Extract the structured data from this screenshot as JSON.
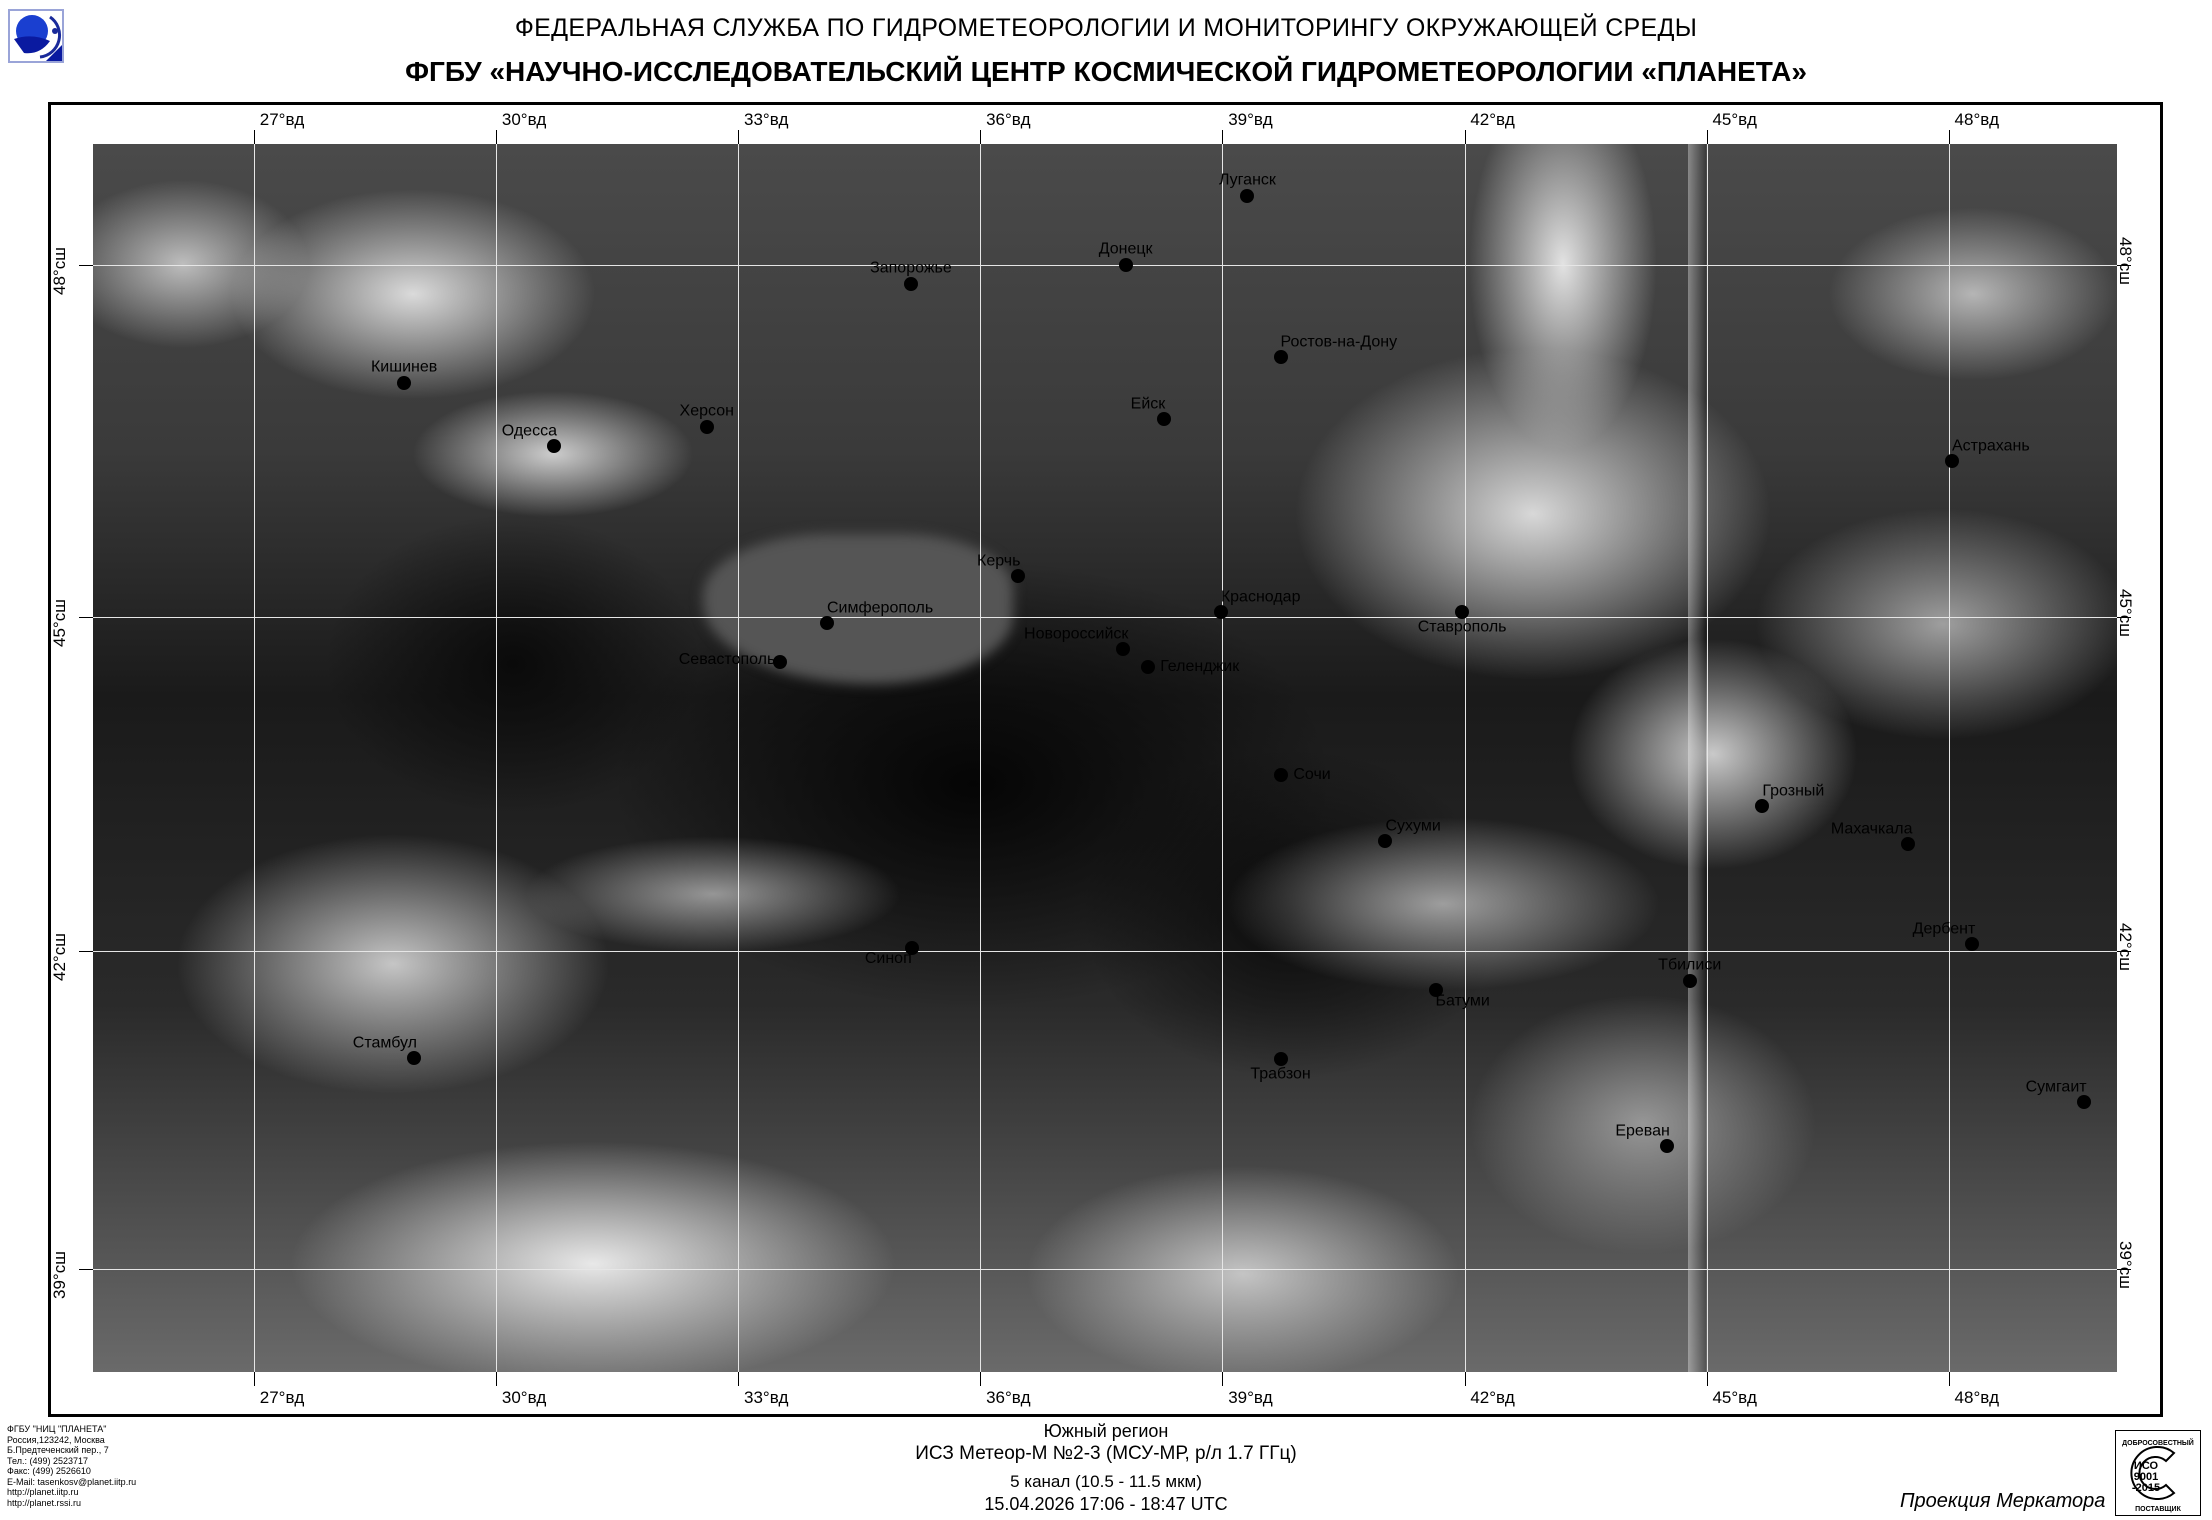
{
  "header": {
    "line1": "ФЕДЕРАЛЬНАЯ СЛУЖБА ПО ГИДРОМЕТЕОРОЛОГИИ И МОНИТОРИНГУ ОКРУЖАЮЩЕЙ СРЕДЫ",
    "line2": "ФГБУ «НАУЧНО-ИССЛЕДОВАТЕЛЬСКИЙ ЦЕНТР КОСМИЧЕСКОЙ ГИДРОМЕТЕОРОЛОГИИ «ПЛАНЕТА»",
    "logo": "planeta-logo"
  },
  "map": {
    "projection": "mercator",
    "lon_range": [
      25,
      50
    ],
    "lat_range": [
      38.2,
      49.4
    ],
    "lon_labels": [
      {
        "lon": 27,
        "label": "27°вд"
      },
      {
        "lon": 30,
        "label": "30°вд"
      },
      {
        "lon": 33,
        "label": "33°вд"
      },
      {
        "lon": 36,
        "label": "36°вд"
      },
      {
        "lon": 39,
        "label": "39°вд"
      },
      {
        "lon": 42,
        "label": "42°вд"
      },
      {
        "lon": 45,
        "label": "45°вд"
      },
      {
        "lon": 48,
        "label": "48°вд"
      }
    ],
    "lat_labels": [
      {
        "lat": 48,
        "label": "48°сш"
      },
      {
        "lat": 45,
        "label": "45°сш"
      },
      {
        "lat": 42,
        "label": "42°сш"
      },
      {
        "lat": 39,
        "label": "39°сш"
      }
    ],
    "cities": [
      {
        "name": "Луганск",
        "lat": 48.57,
        "lon": 39.31,
        "label": "above"
      },
      {
        "name": "Донецк",
        "lat": 48.0,
        "lon": 37.8,
        "label": "above"
      },
      {
        "name": "Запорожье",
        "lat": 47.84,
        "lon": 35.14,
        "label": "above"
      },
      {
        "name": "Кишинев",
        "lat": 47.01,
        "lon": 28.86,
        "label": "above"
      },
      {
        "name": "Ростов-на-Дону",
        "lat": 47.23,
        "lon": 39.72,
        "label": "above-right"
      },
      {
        "name": "Ейск",
        "lat": 46.71,
        "lon": 38.27,
        "label": "above-left"
      },
      {
        "name": "Херсон",
        "lat": 46.64,
        "lon": 32.61,
        "label": "above"
      },
      {
        "name": "Одесса",
        "lat": 46.48,
        "lon": 30.72,
        "label": "above-left"
      },
      {
        "name": "Астрахань",
        "lat": 46.35,
        "lon": 48.04,
        "label": "above-right"
      },
      {
        "name": "Керчь",
        "lat": 45.36,
        "lon": 36.47,
        "label": "above-left"
      },
      {
        "name": "Симферополь",
        "lat": 44.95,
        "lon": 34.1,
        "label": "above-right"
      },
      {
        "name": "Севастополь",
        "lat": 44.6,
        "lon": 33.52,
        "label": "left"
      },
      {
        "name": "Краснодар",
        "lat": 45.04,
        "lon": 38.98,
        "label": "above-right"
      },
      {
        "name": "Ставрополь",
        "lat": 45.04,
        "lon": 41.97,
        "label": "below"
      },
      {
        "name": "Новороссийск",
        "lat": 44.72,
        "lon": 37.77,
        "label": "above-left"
      },
      {
        "name": "Геленджик",
        "lat": 44.56,
        "lon": 38.08,
        "label": "right"
      },
      {
        "name": "Сочи",
        "lat": 43.6,
        "lon": 39.73,
        "label": "right"
      },
      {
        "name": "Грозный",
        "lat": 43.32,
        "lon": 45.69,
        "label": "above-right"
      },
      {
        "name": "Махачкала",
        "lat": 42.98,
        "lon": 47.5,
        "label": "above-left"
      },
      {
        "name": "Сухуми",
        "lat": 43.0,
        "lon": 41.02,
        "label": "above-right"
      },
      {
        "name": "Дербент",
        "lat": 42.06,
        "lon": 48.29,
        "label": "above-left"
      },
      {
        "name": "Синоп",
        "lat": 42.03,
        "lon": 35.15,
        "label": "below-left"
      },
      {
        "name": "Тбилиси",
        "lat": 41.72,
        "lon": 44.79,
        "label": "above"
      },
      {
        "name": "Батуми",
        "lat": 41.64,
        "lon": 41.64,
        "label": "below-right"
      },
      {
        "name": "Стамбул",
        "lat": 41.01,
        "lon": 28.98,
        "label": "above-left"
      },
      {
        "name": "Трабзон",
        "lat": 41.0,
        "lon": 39.72,
        "label": "below"
      },
      {
        "name": "Сумгаит",
        "lat": 40.59,
        "lon": 49.67,
        "label": "above-left"
      },
      {
        "name": "Ереван",
        "lat": 40.18,
        "lon": 44.51,
        "label": "above-left"
      }
    ]
  },
  "footer": {
    "address": [
      "ФГБУ \"НИЦ \"ПЛАНЕТА\"",
      "Россия,123242, Москва",
      "Б.Предтеченский пер., 7",
      "Тел.:  (499) 2523717",
      "Факс: (499) 2526610",
      "E-Mail: tasenkosv@planet.iitp.ru",
      "http://planet.iitp.ru",
      "http://planet.rssi.ru"
    ],
    "region": "Южный регион",
    "satellite": "ИСЗ Метеор-М №2-3 (МСУ-МР, р/л 1.7 ГГц)",
    "channel": "5 канал (10.5 - 11.5 мкм)",
    "datetime": "15.04.2026  17:06 - 18:47 UTC",
    "projection": "Проекция Меркатора",
    "iso_badge": {
      "top": "ДОБРОСОВЕСТНЫЙ",
      "middle": [
        "ИСО",
        "9001",
        "-2015"
      ],
      "bottom": "ПОСТАВЩИК"
    }
  }
}
